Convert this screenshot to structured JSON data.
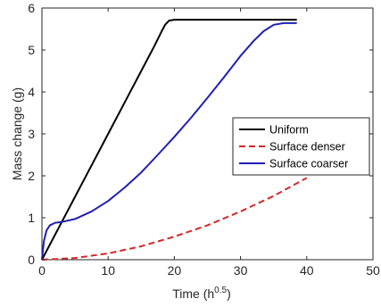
{
  "chart_data": {
    "type": "line",
    "xlabel_base": "Time (h",
    "xlabel_sup": "0.5",
    "xlabel_end": ")",
    "ylabel": "Mass change (g)",
    "xlim": [
      0,
      50
    ],
    "ylim": [
      0,
      6
    ],
    "x_ticks": [
      0,
      10,
      20,
      30,
      40,
      50
    ],
    "y_ticks": [
      0,
      1,
      2,
      3,
      4,
      5,
      6
    ],
    "grid": false,
    "box": true,
    "legend_position": "right",
    "series": [
      {
        "name": "Uniform",
        "color": "#000000",
        "dash": "solid",
        "x": [
          0,
          1,
          3,
          5,
          7,
          9,
          11,
          13,
          15,
          17,
          18,
          18.6,
          19.2,
          20,
          25,
          30,
          35,
          38.5
        ],
        "y": [
          0,
          0.3,
          0.9,
          1.5,
          2.1,
          2.7,
          3.3,
          3.9,
          4.5,
          5.1,
          5.42,
          5.6,
          5.7,
          5.72,
          5.72,
          5.72,
          5.72,
          5.72
        ]
      },
      {
        "name": "Surface denser",
        "color": "#d62728",
        "dash": "dashed",
        "x": [
          0,
          5,
          10,
          15,
          20,
          25,
          30,
          35,
          40
        ],
        "y": [
          0,
          0.04,
          0.15,
          0.32,
          0.55,
          0.82,
          1.15,
          1.52,
          1.95
        ]
      },
      {
        "name": "Surface coarser",
        "color": "#1f1fb4",
        "dash": "solid",
        "x": [
          0,
          0.3,
          0.7,
          1.2,
          2,
          3,
          5,
          7.5,
          10,
          12.5,
          15,
          17.5,
          20,
          22.5,
          25,
          27.5,
          30,
          32,
          33.5,
          35,
          36.5,
          38.5
        ],
        "y": [
          0,
          0.45,
          0.7,
          0.82,
          0.88,
          0.9,
          0.97,
          1.15,
          1.4,
          1.72,
          2.08,
          2.5,
          2.93,
          3.38,
          3.86,
          4.35,
          4.86,
          5.22,
          5.45,
          5.6,
          5.64,
          5.64
        ]
      }
    ]
  }
}
